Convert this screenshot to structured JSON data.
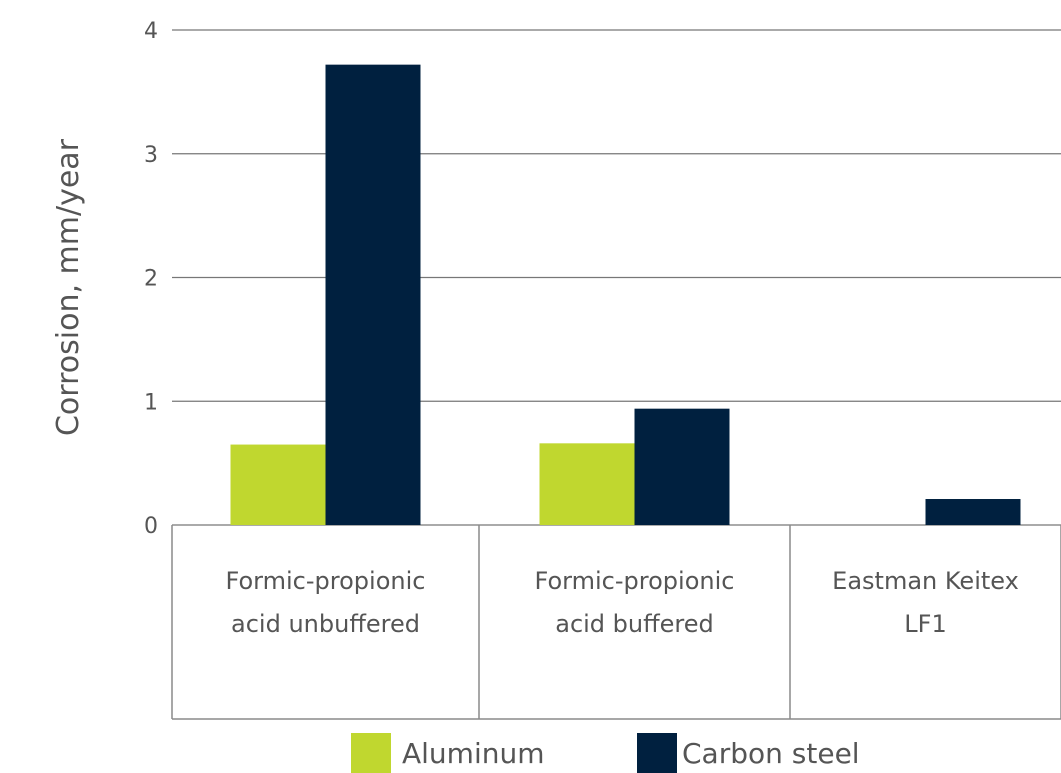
{
  "chart_data": {
    "type": "bar",
    "ylabel": "Corrosion, mm/year",
    "ylim": [
      0,
      4
    ],
    "yticks": [
      "0",
      "1",
      "2",
      "3",
      "4"
    ],
    "grid": true,
    "legend_position": "bottom",
    "categories": [
      [
        "Formic-propionic",
        "acid unbuffered"
      ],
      [
        "Formic-propionic",
        "acid buffered"
      ],
      [
        "Eastman Keitex",
        "LF1"
      ]
    ],
    "series": [
      {
        "name": "Aluminum",
        "color": "#c0d72f",
        "values": [
          0.65,
          0.66,
          0
        ]
      },
      {
        "name": "Carbon steel",
        "color": "#00203f",
        "values": [
          3.72,
          0.94,
          0.21
        ]
      }
    ]
  }
}
